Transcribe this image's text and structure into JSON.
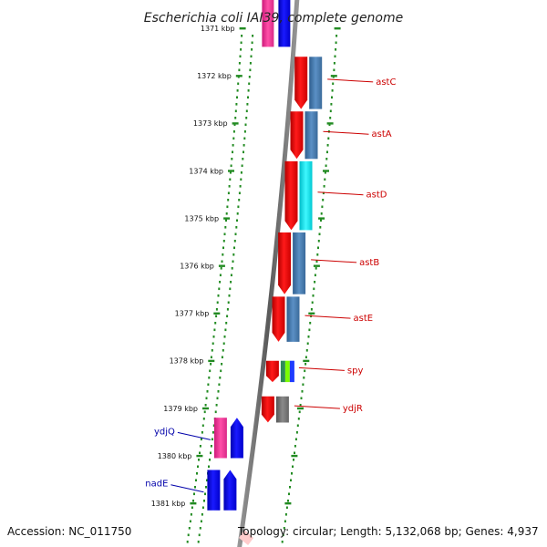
{
  "title": "Escherichia coli IAI39, complete genome",
  "footer": {
    "accession": "Accession: NC_011750",
    "topology": "Topology: circular; Length: 5,132,068 bp; Genes: 4,937"
  },
  "colors": {
    "forward_gene": "#ff0000",
    "reverse_gene": "#0000ff",
    "forward_label": "#cc0000",
    "reverse_label": "#0000aa",
    "operon_steel": "#4a7fb5",
    "operon_cyan": "#00e5ee",
    "pink": "#ff3399",
    "grey": "#777777",
    "dotted_track": "#228b22",
    "backbone": "#888888"
  },
  "ticks": [
    {
      "label": "1371 kbp",
      "kbp": 1371
    },
    {
      "label": "1372 kbp",
      "kbp": 1372
    },
    {
      "label": "1373 kbp",
      "kbp": 1373
    },
    {
      "label": "1374 kbp",
      "kbp": 1374
    },
    {
      "label": "1375 kbp",
      "kbp": 1375
    },
    {
      "label": "1376 kbp",
      "kbp": 1376
    },
    {
      "label": "1377 kbp",
      "kbp": 1377
    },
    {
      "label": "1378 kbp",
      "kbp": 1378
    },
    {
      "label": "1379 kbp",
      "kbp": 1379
    },
    {
      "label": "1380 kbp",
      "kbp": 1380
    },
    {
      "label": "1381 kbp",
      "kbp": 1381
    }
  ],
  "genes": [
    {
      "name": "astC",
      "strand": "+",
      "start": 1371.6,
      "end": 1372.7
    },
    {
      "name": "astA",
      "strand": "+",
      "start": 1372.75,
      "end": 1373.75
    },
    {
      "name": "astD",
      "strand": "+",
      "start": 1373.8,
      "end": 1375.25
    },
    {
      "name": "astB",
      "strand": "+",
      "start": 1375.3,
      "end": 1376.6
    },
    {
      "name": "astE",
      "strand": "+",
      "start": 1376.65,
      "end": 1377.6
    },
    {
      "name": "spy",
      "strand": "+",
      "start": 1378.0,
      "end": 1378.45
    },
    {
      "name": "ydjR",
      "strand": "+",
      "start": 1378.75,
      "end": 1379.3
    },
    {
      "name": "ydjQ",
      "strand": "-",
      "start": 1379.2,
      "end": 1380.05
    },
    {
      "name": "nadE",
      "strand": "-",
      "start": 1380.3,
      "end": 1381.15
    }
  ],
  "top_genes": [
    {
      "strand": "-",
      "start": 1370.6,
      "end": 1371.2,
      "color": "pink"
    },
    {
      "strand": "-",
      "start": 1370.6,
      "end": 1371.2,
      "color": "blue"
    }
  ]
}
